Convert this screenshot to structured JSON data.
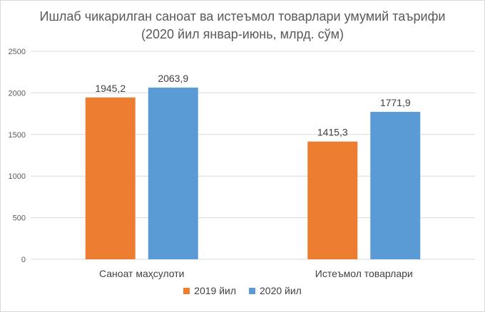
{
  "chart_data": {
    "type": "bar",
    "title_line1": "Ишлаб чикарилган саноат ва истеъмол товарлари умумий таърифи",
    "title_line2": "(2020 йил январ-июнь, млрд. сўм)",
    "categories": [
      "Саноат маҳсулоти",
      "Истеъмол товарлари"
    ],
    "series": [
      {
        "name": "2019 йил",
        "values": [
          1945.2,
          1415.3
        ],
        "labels": [
          "1945,2",
          "1415,3"
        ],
        "color": "#ed7d31"
      },
      {
        "name": "2020 йил",
        "values": [
          2063.9,
          1771.9
        ],
        "labels": [
          "2063,9",
          "1771,9"
        ],
        "color": "#5b9bd5"
      }
    ],
    "ylim": [
      0,
      2500
    ],
    "yticks": [
      0,
      500,
      1000,
      1500,
      2000,
      2500
    ],
    "grid": true,
    "legend_position": "bottom"
  }
}
